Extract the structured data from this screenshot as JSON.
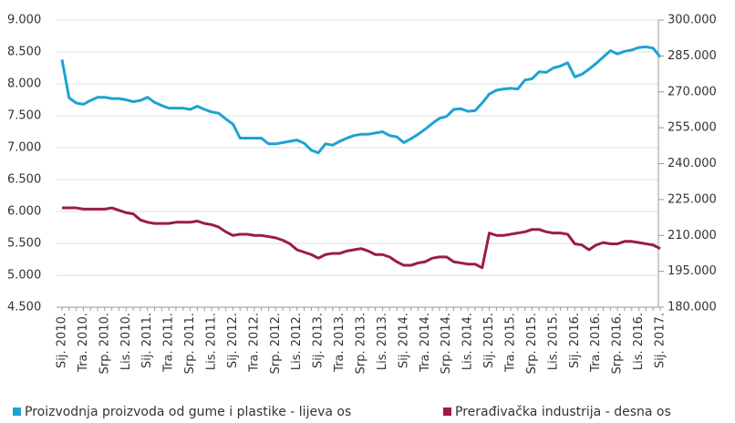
{
  "chart_data": {
    "type": "line",
    "categories": [
      "Sij. 2010.",
      null,
      null,
      "Tra. 2010.",
      null,
      null,
      "Srp. 2010.",
      null,
      null,
      "Lis. 2010.",
      null,
      null,
      "Sij. 2011.",
      null,
      null,
      "Tra. 2011.",
      null,
      null,
      "Srp. 2011.",
      null,
      null,
      "Lis. 2011.",
      null,
      null,
      "Sij. 2012.",
      null,
      null,
      "Tra. 2012.",
      null,
      null,
      "Srp. 2012.",
      null,
      null,
      "Lis. 2012.",
      null,
      null,
      "Sij. 2013.",
      null,
      null,
      "Tra. 2013.",
      null,
      null,
      "Srp. 2013.",
      null,
      null,
      "Lis. 2013.",
      null,
      null,
      "Sij. 2014.",
      null,
      null,
      "Tra. 2014.",
      null,
      null,
      "Srp. 2014.",
      null,
      null,
      "Lis. 2014.",
      null,
      null,
      "Sij. 2015.",
      null,
      null,
      "Tra. 2015.",
      null,
      null,
      "Srp. 2015.",
      null,
      null,
      "Lis. 2015.",
      null,
      null,
      "Sij. 2016.",
      null,
      null,
      "Tra. 2016.",
      null,
      null,
      "Srp. 2016.",
      null,
      null,
      "Lis. 2016.",
      null,
      null,
      "Sij. 2017."
    ],
    "series": [
      {
        "name": "Proizvodnja proizvoda od gume i plastike - lijeva os",
        "color": "#1ca3d3",
        "axis": "y",
        "values": [
          8380,
          7780,
          7700,
          7680,
          7740,
          7790,
          7790,
          7770,
          7770,
          7750,
          7720,
          7740,
          7790,
          7710,
          7660,
          7620,
          7620,
          7620,
          7600,
          7650,
          7600,
          7560,
          7540,
          7450,
          7370,
          7150,
          7150,
          7150,
          7150,
          7060,
          7060,
          7080,
          7100,
          7120,
          7070,
          6960,
          6920,
          7060,
          7040,
          7100,
          7150,
          7190,
          7210,
          7210,
          7230,
          7250,
          7190,
          7170,
          7080,
          7140,
          7210,
          7290,
          7380,
          7460,
          7490,
          7600,
          7610,
          7570,
          7580,
          7700,
          7840,
          7900,
          7920,
          7930,
          7920,
          8060,
          8080,
          8190,
          8180,
          8250,
          8280,
          8330,
          8110,
          8150,
          8230,
          8320,
          8420,
          8520,
          8470,
          8510,
          8530,
          8570,
          8580,
          8560,
          8420
        ]
      },
      {
        "name": "Prerađivačka industrija - desna os",
        "color": "#9b1b4c",
        "axis": "y2",
        "values": [
          221500,
          221500,
          221500,
          221000,
          221000,
          221000,
          221000,
          221500,
          220500,
          219500,
          219000,
          216500,
          215500,
          215000,
          215000,
          215000,
          215500,
          215500,
          215500,
          216000,
          215000,
          214500,
          213500,
          211500,
          210000,
          210500,
          210500,
          210000,
          210000,
          209500,
          209000,
          208000,
          206500,
          204000,
          203000,
          202000,
          200500,
          202000,
          202500,
          202500,
          203500,
          204000,
          204500,
          203500,
          202000,
          202000,
          201000,
          199000,
          197500,
          197500,
          198500,
          199000,
          200500,
          201000,
          201000,
          199000,
          198500,
          198000,
          198000,
          196500,
          211000,
          210000,
          210000,
          210500,
          211000,
          211500,
          212500,
          212500,
          211500,
          211000,
          211000,
          210500,
          206500,
          206000,
          204000,
          206000,
          207000,
          206500,
          206500,
          207500,
          207500,
          207000,
          206500,
          206000,
          204500
        ]
      }
    ],
    "ylim": [
      4500,
      9000
    ],
    "yticks": [
      {
        "value": 4500,
        "label": "4.500"
      },
      {
        "value": 5000,
        "label": "5.000"
      },
      {
        "value": 5500,
        "label": "5.500"
      },
      {
        "value": 6000,
        "label": "6.000"
      },
      {
        "value": 6500,
        "label": "6.500"
      },
      {
        "value": 7000,
        "label": "7.000"
      },
      {
        "value": 7500,
        "label": "7.500"
      },
      {
        "value": 8000,
        "label": "8.000"
      },
      {
        "value": 8500,
        "label": "8.500"
      },
      {
        "value": 9000,
        "label": "9.000"
      }
    ],
    "y2lim": [
      180000,
      300000
    ],
    "y2ticks": [
      {
        "value": 180000,
        "label": "180.000"
      },
      {
        "value": 195000,
        "label": "195.000"
      },
      {
        "value": 210000,
        "label": "210.000"
      },
      {
        "value": 225000,
        "label": "225.000"
      },
      {
        "value": 240000,
        "label": "240.000"
      },
      {
        "value": 255000,
        "label": "255.000"
      },
      {
        "value": 270000,
        "label": "270.000"
      },
      {
        "value": 285000,
        "label": "285.000"
      },
      {
        "value": 300000,
        "label": "300.000"
      }
    ],
    "grid": true,
    "legend": "bottom"
  }
}
